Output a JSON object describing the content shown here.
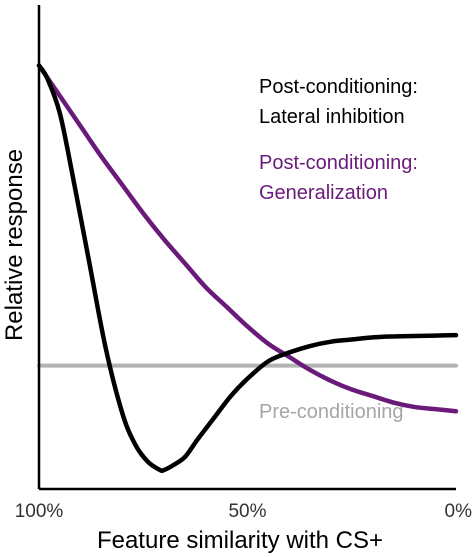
{
  "chart_data": {
    "type": "line",
    "title": "",
    "xlabel": "Feature similarity with CS+",
    "ylabel": "Relative response",
    "x_direction": "descending",
    "xlim": [
      100,
      0
    ],
    "x_ticks": [
      {
        "value": 100,
        "label": "100%"
      },
      {
        "value": 50,
        "label": "50%"
      },
      {
        "value": 0,
        "label": "0%"
      }
    ],
    "ylim": [
      0,
      1
    ],
    "y_ticks_shown": false,
    "grid": false,
    "legend_placement": "inline-right",
    "series": [
      {
        "name": "Post-conditioning:\nLateral inhibition",
        "label_lines": [
          "Post-conditioning:",
          "Lateral inhibition"
        ],
        "color": "#000000",
        "x": [
          100,
          98,
          95,
          92,
          88,
          84,
          80,
          77,
          74,
          71,
          70,
          68,
          65,
          62,
          58,
          54,
          50,
          45,
          40,
          35,
          30,
          25,
          20,
          15,
          10,
          5,
          0
        ],
        "y": [
          0.93,
          0.9,
          0.82,
          0.68,
          0.48,
          0.28,
          0.13,
          0.06,
          0.02,
          0.0,
          0.0,
          0.01,
          0.03,
          0.07,
          0.12,
          0.17,
          0.21,
          0.25,
          0.27,
          0.285,
          0.295,
          0.3,
          0.305,
          0.307,
          0.308,
          0.309,
          0.31
        ]
      },
      {
        "name": "Post-conditioning:\nGeneralization",
        "label_lines": [
          "Post-conditioning:",
          "Generalization"
        ],
        "color": "#6a1b7a",
        "x": [
          100,
          95,
          90,
          85,
          80,
          75,
          70,
          65,
          60,
          55,
          50,
          45,
          40,
          35,
          30,
          25,
          20,
          15,
          10,
          5,
          0
        ],
        "y": [
          0.93,
          0.86,
          0.79,
          0.72,
          0.655,
          0.59,
          0.53,
          0.475,
          0.42,
          0.375,
          0.33,
          0.29,
          0.26,
          0.23,
          0.205,
          0.185,
          0.17,
          0.155,
          0.145,
          0.14,
          0.135
        ]
      },
      {
        "name": "Pre-conditioning",
        "label_lines": [
          "Pre-conditioning"
        ],
        "color": "#b3b3b3",
        "x": [
          100,
          0
        ],
        "y": [
          0.24,
          0.24
        ]
      }
    ]
  }
}
